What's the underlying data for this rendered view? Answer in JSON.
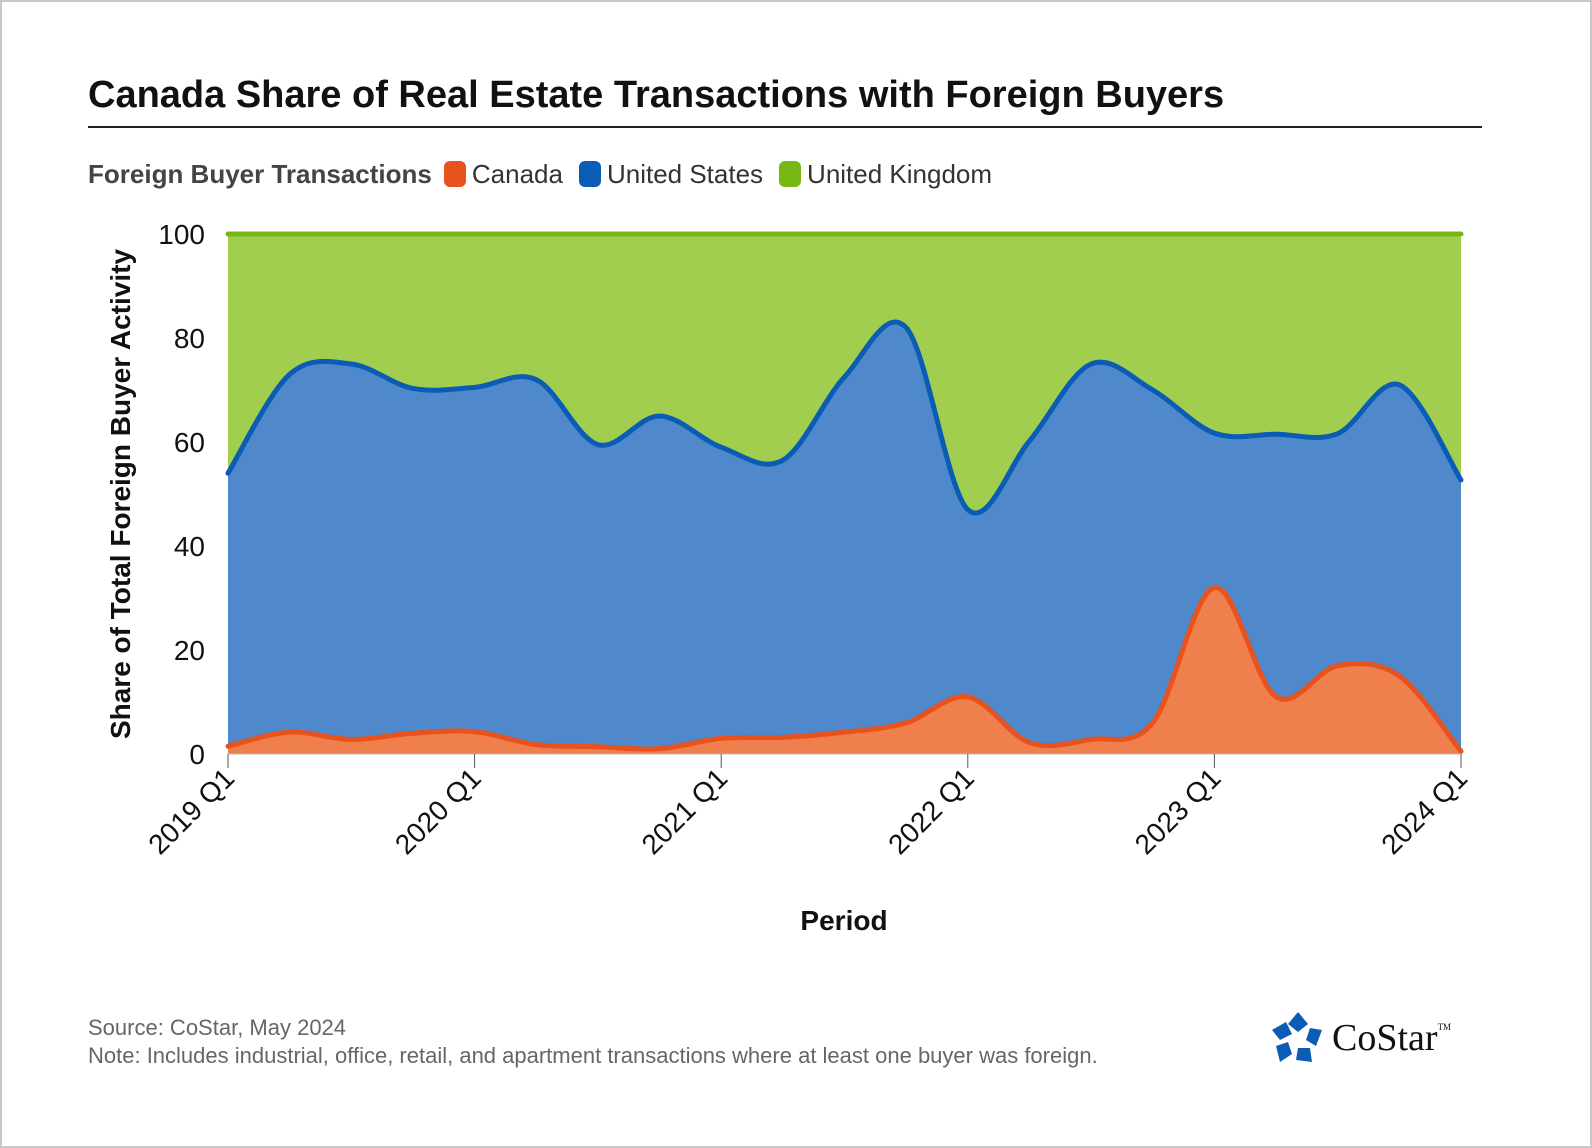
{
  "title": "Canada Share of Real Estate Transactions with Foreign Buyers",
  "legend": {
    "title": "Foreign Buyer Transactions",
    "items": [
      {
        "label": "Canada",
        "color": "#e8521c"
      },
      {
        "label": "United States",
        "color": "#0b5cb5"
      },
      {
        "label": "United Kingdom",
        "color": "#78b814"
      }
    ]
  },
  "footer": {
    "source": "Source: CoStar, May 2024",
    "note": "Note: Includes industrial, office, retail, and apartment transactions where at least one buyer was foreign."
  },
  "logo": {
    "text": "CoStar",
    "tm": "TM"
  },
  "chart_data": {
    "type": "area",
    "stacked": true,
    "xlabel": "Period",
    "ylabel": "Share of Total Foreign Buyer Activity",
    "ylim": [
      0,
      100
    ],
    "yticks": [
      0,
      20,
      40,
      60,
      80,
      100
    ],
    "xticks": [
      "2019 Q1",
      "2020 Q1",
      "2021 Q1",
      "2022 Q1",
      "2023 Q1",
      "2024 Q1"
    ],
    "x": [
      "2019 Q1",
      "2019 Q2",
      "2019 Q3",
      "2019 Q4",
      "2020 Q1",
      "2020 Q2",
      "2020 Q3",
      "2020 Q4",
      "2021 Q1",
      "2021 Q2",
      "2021 Q3",
      "2021 Q4",
      "2022 Q1",
      "2022 Q2",
      "2022 Q3",
      "2022 Q4",
      "2023 Q1",
      "2023 Q2",
      "2023 Q3",
      "2023 Q4",
      "2024 Q1"
    ],
    "series": [
      {
        "name": "Canada",
        "color": "#e8521c",
        "fill": "#f07f4e",
        "values": [
          1.5,
          4.2,
          2.8,
          4.0,
          4.3,
          1.8,
          1.4,
          1.0,
          3.0,
          3.2,
          4.2,
          6.0,
          11.0,
          2.2,
          2.8,
          6.0,
          32.0,
          11.0,
          17.0,
          15.0,
          0.5
        ]
      },
      {
        "name": "United States",
        "color": "#0b5cb5",
        "fill": "#4f88cb",
        "values": [
          52.5,
          68.8,
          72.2,
          66.3,
          66.2,
          70.2,
          58.1,
          64.0,
          56.0,
          53.3,
          68.3,
          76.0,
          36.0,
          58.0,
          72.2,
          64.0,
          29.7,
          50.5,
          44.6,
          56.0,
          52.2
        ]
      },
      {
        "name": "United Kingdom",
        "color": "#78b814",
        "fill": "#a1ce4f",
        "values": [
          46.0,
          27.0,
          25.0,
          29.7,
          29.5,
          28.0,
          40.5,
          35.0,
          41.0,
          43.5,
          27.5,
          18.0,
          53.0,
          39.8,
          25.0,
          30.0,
          38.3,
          38.5,
          38.4,
          29.0,
          47.3
        ]
      }
    ],
    "grid": true
  }
}
